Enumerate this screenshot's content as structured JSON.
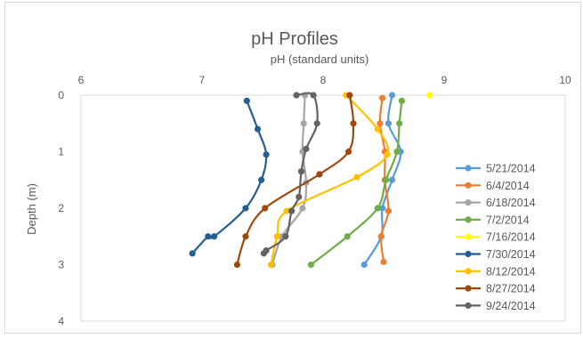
{
  "chart_data": {
    "type": "line",
    "title": "pH Profiles",
    "xlabel": "pH (standard units)",
    "ylabel": "Depth (m)",
    "xlim": [
      6,
      10
    ],
    "ylim": [
      0,
      4
    ],
    "x_axis_position": "top",
    "y_axis_inverted": true,
    "x_ticks": [
      "6",
      "7",
      "8",
      "9",
      "10"
    ],
    "y_ticks": [
      "0",
      "1",
      "2",
      "3",
      "4"
    ],
    "grid": false,
    "legend_position": "right",
    "series": [
      {
        "name": "5/21/2014",
        "color": "#5b9bd5",
        "points": [
          [
            8.57,
            0
          ],
          [
            8.54,
            0.5
          ],
          [
            8.64,
            1.0
          ],
          [
            8.57,
            1.5
          ],
          [
            8.49,
            2.0
          ],
          [
            8.48,
            2.5
          ],
          [
            8.34,
            3.0
          ]
        ]
      },
      {
        "name": "6/4/2014",
        "color": "#ed7d31",
        "points": [
          [
            8.49,
            0.05
          ],
          [
            8.47,
            0.5
          ],
          [
            8.51,
            1.0
          ],
          [
            8.51,
            1.5
          ],
          [
            8.54,
            2.05
          ],
          [
            8.48,
            2.5
          ],
          [
            8.5,
            2.95
          ]
        ]
      },
      {
        "name": "6/18/2014",
        "color": "#a5a5a5",
        "points": [
          [
            7.85,
            0
          ],
          [
            7.84,
            0.5
          ],
          [
            7.83,
            1.0
          ],
          [
            7.86,
            1.55
          ],
          [
            7.83,
            2.0
          ],
          [
            7.66,
            2.5
          ],
          [
            7.58,
            3.0
          ]
        ]
      },
      {
        "name": "7/2/2014",
        "color": "#70ad47",
        "points": [
          [
            8.65,
            0.1
          ],
          [
            8.63,
            0.5
          ],
          [
            8.61,
            1.0
          ],
          [
            8.52,
            1.5
          ],
          [
            8.45,
            2.0
          ],
          [
            8.2,
            2.5
          ],
          [
            7.9,
            3.0
          ]
        ]
      },
      {
        "name": "7/16/2014",
        "color": "#ffff00",
        "points": [
          [
            8.88,
            0
          ]
        ]
      },
      {
        "name": "7/30/2014",
        "color": "#255e91",
        "points": [
          [
            7.37,
            0.1
          ],
          [
            7.46,
            0.6
          ],
          [
            7.53,
            1.05
          ],
          [
            7.49,
            1.5
          ],
          [
            7.36,
            2.0
          ],
          [
            7.1,
            2.5
          ],
          [
            7.05,
            2.5
          ],
          [
            6.92,
            2.8
          ]
        ]
      },
      {
        "name": "8/12/2014",
        "color": "#ffc000",
        "points": [
          [
            8.19,
            0
          ],
          [
            8.45,
            0.6
          ],
          [
            8.53,
            1.05
          ],
          [
            8.28,
            1.45
          ],
          [
            7.7,
            2.05
          ],
          [
            7.62,
            2.5
          ],
          [
            7.57,
            3.0
          ]
        ]
      },
      {
        "name": "8/27/2014",
        "color": "#9e480e",
        "points": [
          [
            8.22,
            0
          ],
          [
            8.25,
            0.5
          ],
          [
            8.21,
            1.0
          ],
          [
            7.97,
            1.4
          ],
          [
            7.52,
            2.0
          ],
          [
            7.36,
            2.5
          ],
          [
            7.29,
            3.0
          ]
        ]
      },
      {
        "name": "9/24/2014",
        "color": "#636363",
        "points": [
          [
            7.78,
            0
          ],
          [
            7.92,
            0
          ],
          [
            7.95,
            0.5
          ],
          [
            7.86,
            0.95
          ],
          [
            7.82,
            1.35
          ],
          [
            7.8,
            1.8
          ],
          [
            7.74,
            2.05
          ],
          [
            7.69,
            2.5
          ],
          [
            7.53,
            2.75
          ],
          [
            7.51,
            2.8
          ]
        ]
      }
    ]
  }
}
